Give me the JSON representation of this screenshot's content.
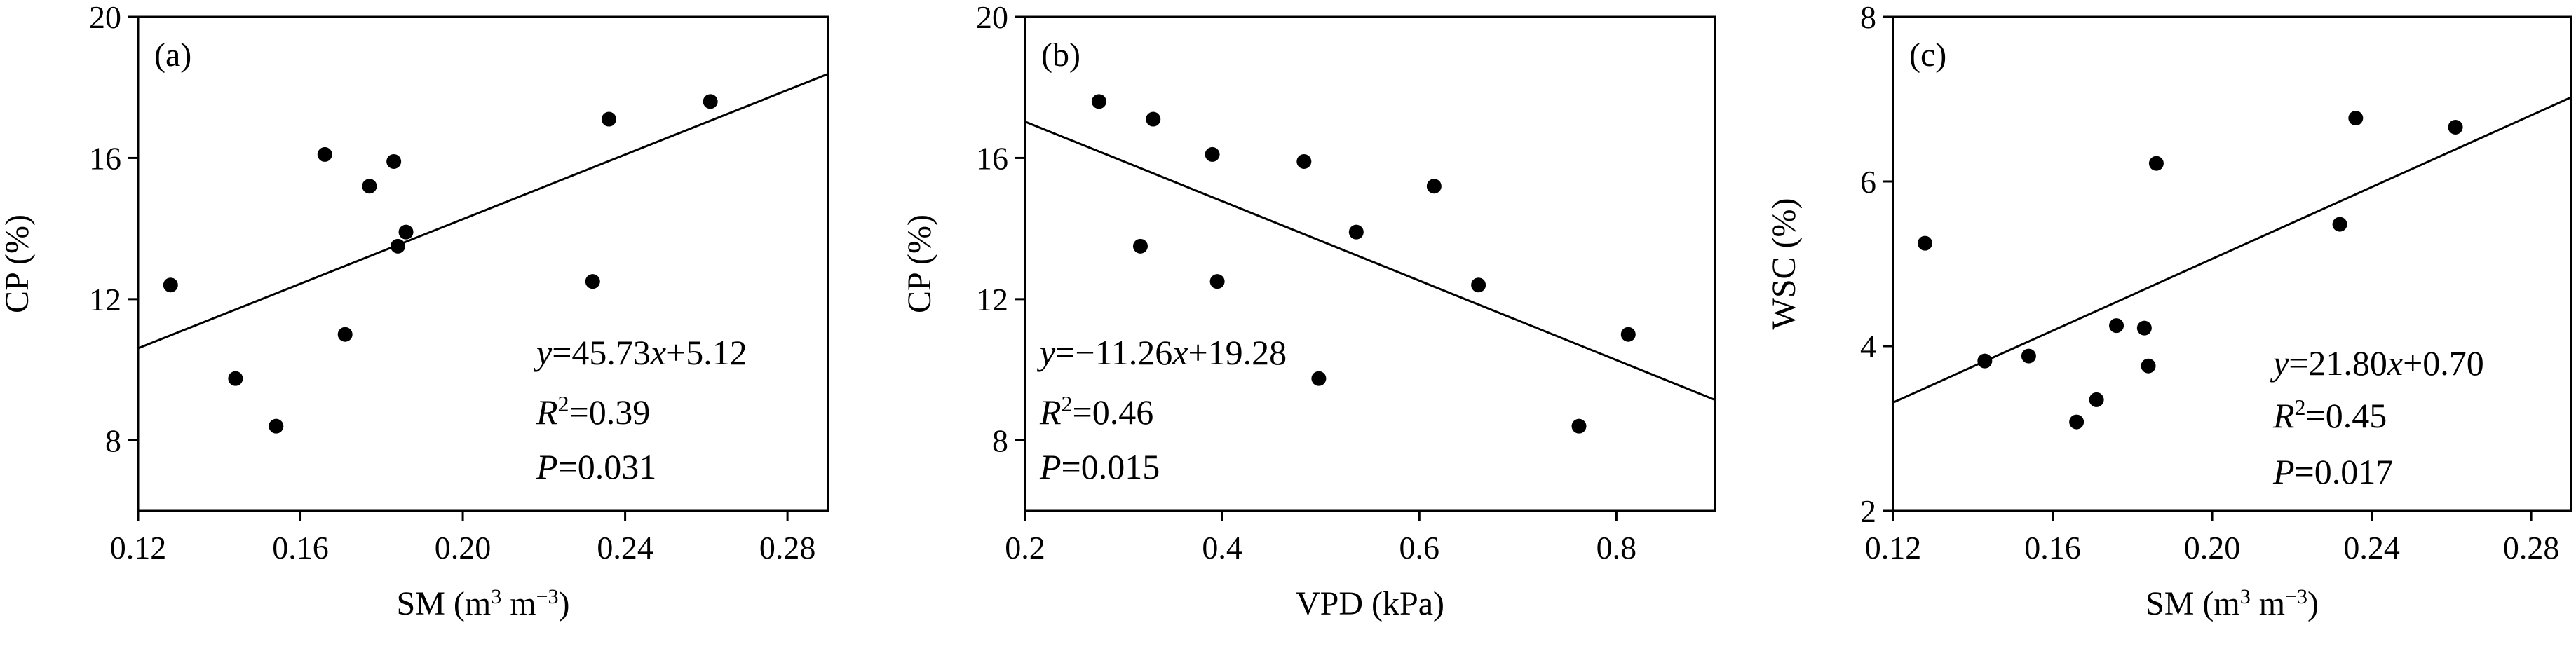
{
  "chart_data": [
    {
      "panel_label": "(a)",
      "type": "scatter",
      "xlabel": {
        "pre": "SM (m",
        "sup1": "3",
        "mid": " m",
        "sup2": "−3",
        "post": ")"
      },
      "ylabel": "CP (%)",
      "xlim": [
        0.12,
        0.29
      ],
      "ylim": [
        6,
        20
      ],
      "xticks": [
        0.12,
        0.16,
        0.2,
        0.24,
        0.28
      ],
      "xtick_labels": [
        "0.12",
        "0.16",
        "0.20",
        "0.24",
        "0.28"
      ],
      "yticks": [
        8,
        12,
        16,
        20
      ],
      "ytick_labels": [
        "8",
        "12",
        "16",
        "20"
      ],
      "points": [
        {
          "x": 0.128,
          "y": 12.4
        },
        {
          "x": 0.144,
          "y": 9.75
        },
        {
          "x": 0.154,
          "y": 8.4
        },
        {
          "x": 0.166,
          "y": 16.1
        },
        {
          "x": 0.171,
          "y": 11.0
        },
        {
          "x": 0.177,
          "y": 15.2
        },
        {
          "x": 0.183,
          "y": 15.9
        },
        {
          "x": 0.184,
          "y": 13.5
        },
        {
          "x": 0.186,
          "y": 13.9
        },
        {
          "x": 0.232,
          "y": 12.5
        },
        {
          "x": 0.236,
          "y": 17.1
        },
        {
          "x": 0.261,
          "y": 17.6
        }
      ],
      "fit": {
        "slope": 45.73,
        "intercept": 5.12
      },
      "annotation": {
        "eq_lhs": "y",
        "eq_rhs_a": "=45.73",
        "eq_x": "x",
        "eq_rhs_b": "+5.12",
        "r2_label": "R",
        "r2_sup": "2",
        "r2_value": "=0.39",
        "p_label": "P",
        "p_value": "=0.031"
      }
    },
    {
      "panel_label": "(b)",
      "type": "scatter",
      "xlabel": {
        "pre": "VPD (kPa)",
        "sup1": "",
        "mid": "",
        "sup2": "",
        "post": ""
      },
      "ylabel": "CP (%)",
      "xlim": [
        0.2,
        0.9
      ],
      "ylim": [
        6,
        20
      ],
      "xticks": [
        0.2,
        0.4,
        0.6,
        0.8
      ],
      "xtick_labels": [
        "0.2",
        "0.4",
        "0.6",
        "0.8"
      ],
      "yticks": [
        8,
        12,
        16,
        20
      ],
      "ytick_labels": [
        "8",
        "12",
        "16",
        "20"
      ],
      "points": [
        {
          "x": 0.275,
          "y": 17.6
        },
        {
          "x": 0.33,
          "y": 17.1
        },
        {
          "x": 0.317,
          "y": 13.5
        },
        {
          "x": 0.39,
          "y": 16.1
        },
        {
          "x": 0.395,
          "y": 12.5
        },
        {
          "x": 0.483,
          "y": 15.9
        },
        {
          "x": 0.498,
          "y": 9.75
        },
        {
          "x": 0.536,
          "y": 13.9
        },
        {
          "x": 0.615,
          "y": 15.2
        },
        {
          "x": 0.66,
          "y": 12.4
        },
        {
          "x": 0.762,
          "y": 8.4
        },
        {
          "x": 0.812,
          "y": 11.0
        }
      ],
      "fit": {
        "slope": -11.26,
        "intercept": 19.28
      },
      "annotation": {
        "eq_lhs": "y",
        "eq_rhs_a": "=−11.26",
        "eq_x": "x",
        "eq_rhs_b": "+19.28",
        "r2_label": "R",
        "r2_sup": "2",
        "r2_value": "=0.46",
        "p_label": "P",
        "p_value": "=0.015"
      }
    },
    {
      "panel_label": "(c)",
      "type": "scatter",
      "xlabel": {
        "pre": "SM (m",
        "sup1": "3",
        "mid": " m",
        "sup2": "−3",
        "post": ")"
      },
      "ylabel": "WSC (%)",
      "xlim": [
        0.12,
        0.29
      ],
      "ylim": [
        2,
        8
      ],
      "xticks": [
        0.12,
        0.16,
        0.2,
        0.24,
        0.28
      ],
      "xtick_labels": [
        "0.12",
        "0.16",
        "0.20",
        "0.24",
        "0.28"
      ],
      "yticks": [
        2,
        4,
        6,
        8
      ],
      "ytick_labels": [
        "2",
        "4",
        "6",
        "8"
      ],
      "points": [
        {
          "x": 0.128,
          "y": 5.25
        },
        {
          "x": 0.143,
          "y": 3.82
        },
        {
          "x": 0.154,
          "y": 3.88
        },
        {
          "x": 0.166,
          "y": 3.08
        },
        {
          "x": 0.171,
          "y": 3.35
        },
        {
          "x": 0.176,
          "y": 4.25
        },
        {
          "x": 0.183,
          "y": 4.22
        },
        {
          "x": 0.184,
          "y": 3.76
        },
        {
          "x": 0.186,
          "y": 6.22
        },
        {
          "x": 0.232,
          "y": 5.48
        },
        {
          "x": 0.236,
          "y": 6.77
        },
        {
          "x": 0.261,
          "y": 6.66
        }
      ],
      "fit": {
        "slope": 21.8,
        "intercept": 0.7
      },
      "annotation": {
        "eq_lhs": "y",
        "eq_rhs_a": "=21.80",
        "eq_x": "x",
        "eq_rhs_b": "+0.70",
        "r2_label": "R",
        "r2_sup": "2",
        "r2_value": "=0.45",
        "p_label": "P",
        "p_value": "=0.017"
      }
    }
  ]
}
